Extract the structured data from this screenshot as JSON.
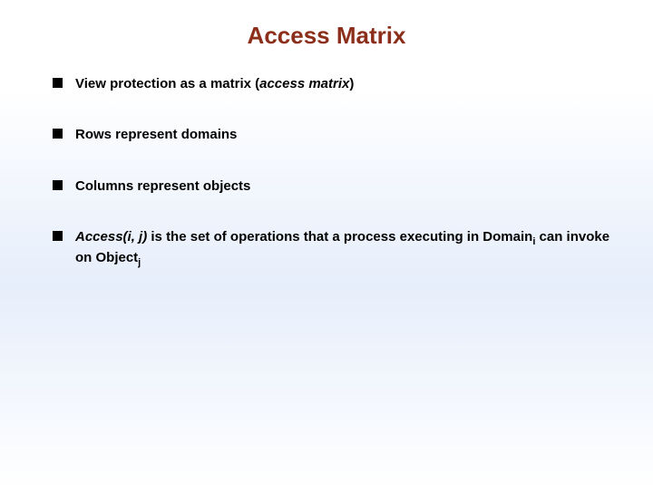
{
  "title": "Access Matrix",
  "title_color": "#8b2e1a",
  "title_fontsize": 26,
  "bullet_marker_color": "#000000",
  "bullet_marker_size": 11,
  "body_fontsize": 15,
  "body_color": "#000000",
  "background_gradient": [
    "#ffffff",
    "#e6eefb",
    "#ffffff"
  ],
  "bullets": {
    "0": {
      "pre": "View protection as a matrix (",
      "italic": "access matrix",
      "post": ")"
    },
    "1": {
      "text": "Rows represent domains"
    },
    "2": {
      "text": "Columns represent objects"
    },
    "3": {
      "italic_lead": "Access(i, j)",
      "post_lead": " is the set of operations that a process executing in Domain",
      "sub1": "i",
      "mid": " can invoke on Object",
      "sub2": "j"
    }
  }
}
